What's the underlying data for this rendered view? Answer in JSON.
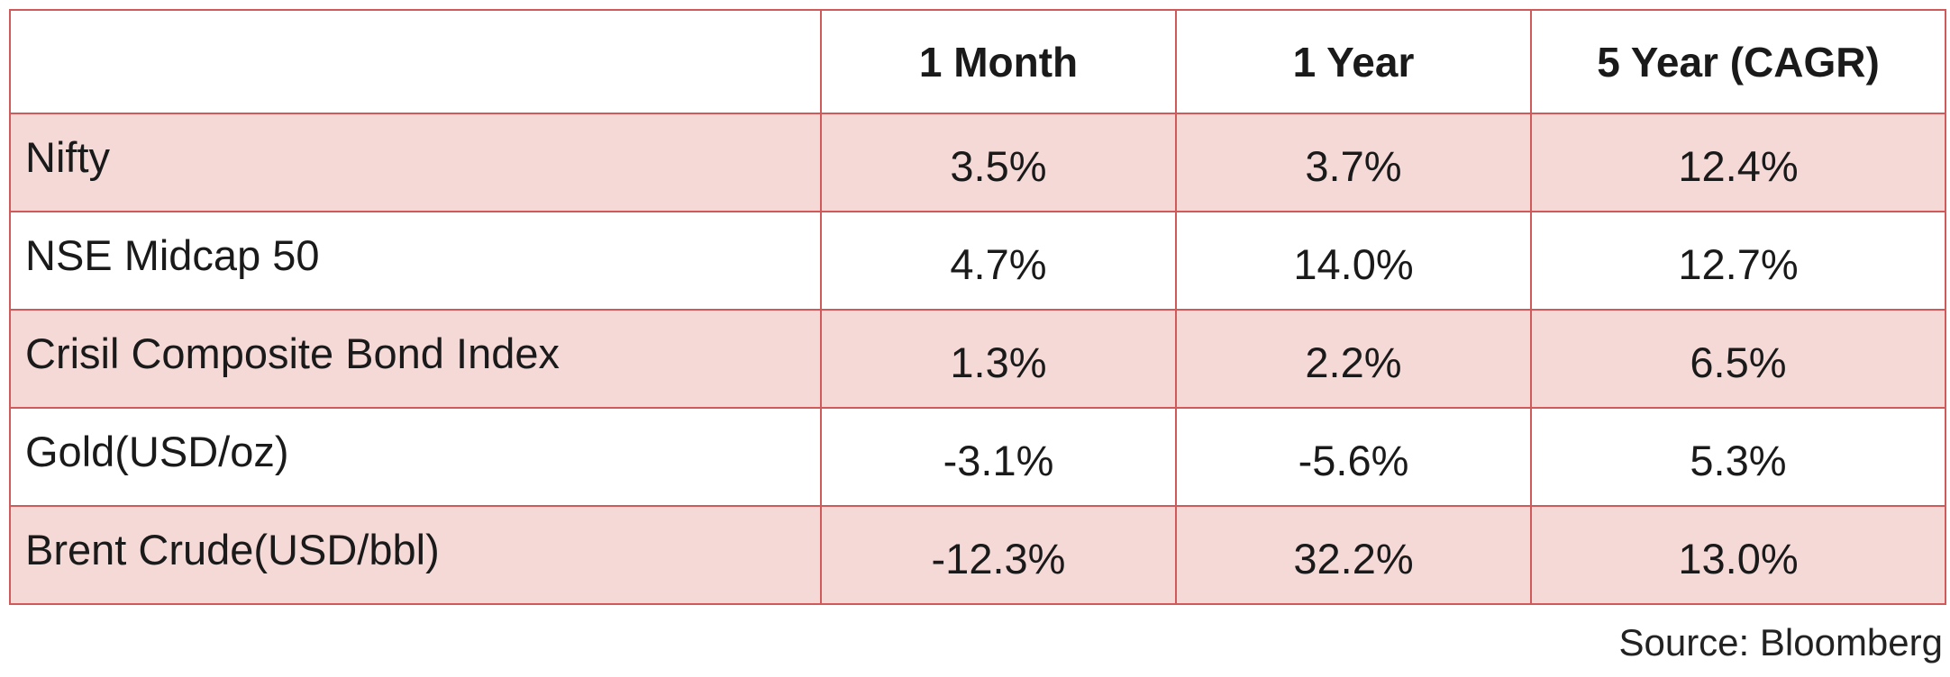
{
  "chart_data": {
    "type": "table",
    "columns": [
      "",
      "1 Month",
      "1 Year",
      "5 Year (CAGR)"
    ],
    "rows": [
      {
        "label": "Nifty",
        "values": [
          "3.5%",
          "3.7%",
          "12.4%"
        ]
      },
      {
        "label": "NSE Midcap 50",
        "values": [
          "4.7%",
          "14.0%",
          "12.7%"
        ]
      },
      {
        "label": "Crisil Composite Bond Index",
        "values": [
          "1.3%",
          "2.2%",
          "6.5%"
        ]
      },
      {
        "label": "Gold(USD/oz)",
        "values": [
          "-3.1%",
          "-5.6%",
          "5.3%"
        ]
      },
      {
        "label": "Brent Crude(USD/bbl)",
        "values": [
          "-12.3%",
          "32.2%",
          "13.0%"
        ]
      }
    ],
    "source": "Source: Bloomberg"
  },
  "colors": {
    "border": "#d05a5a",
    "shaded_row": "#f5d9d7",
    "plain_row": "#ffffff"
  }
}
